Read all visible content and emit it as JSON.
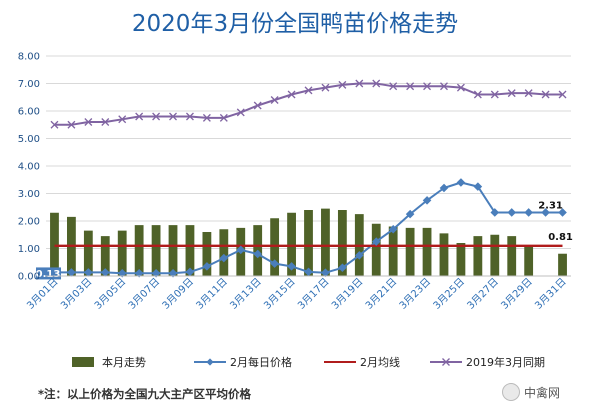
{
  "chart_data": {
    "type": "bar",
    "title": "2020年3月份全国鸭苗价格走势",
    "ylim": [
      0,
      8
    ],
    "yticks": [
      "0.00",
      "1.00",
      "2.00",
      "3.00",
      "4.00",
      "5.00",
      "6.00",
      "7.00",
      "8.00"
    ],
    "grid": true,
    "legend_position": "bottom",
    "categories": [
      "3月01日",
      "3月02日",
      "3月03日",
      "3月04日",
      "3月05日",
      "3月06日",
      "3月07日",
      "3月08日",
      "3月09日",
      "3月10日",
      "3月11日",
      "3月12日",
      "3月13日",
      "3月14日",
      "3月15日",
      "3月16日",
      "3月17日",
      "3月18日",
      "3月19日",
      "3月20日",
      "3月21日",
      "3月22日",
      "3月23日",
      "3月24日",
      "3月25日",
      "3月26日",
      "3月27日",
      "3月28日",
      "3月29日",
      "3月30日",
      "3月31日"
    ],
    "xtick_labels": [
      "3月01日",
      "3月03日",
      "3月05日",
      "3月07日",
      "3月09日",
      "3月11日",
      "3月13日",
      "3月15日",
      "3月17日",
      "3月19日",
      "3月21日",
      "3月23日",
      "3月25日",
      "3月27日",
      "3月29日",
      "3月31日"
    ],
    "series": [
      {
        "name": "本月走势",
        "type": "bar",
        "color": "#4f6228",
        "values": [
          2.3,
          2.15,
          1.65,
          1.45,
          1.65,
          1.85,
          1.85,
          1.85,
          1.85,
          1.6,
          1.7,
          1.75,
          1.85,
          2.1,
          2.3,
          2.4,
          2.45,
          2.4,
          2.25,
          1.9,
          1.8,
          1.75,
          1.75,
          1.55,
          1.2,
          1.45,
          1.5,
          1.45,
          1.1,
          null,
          0.81
        ]
      },
      {
        "name": "2月每日价格",
        "type": "line",
        "color": "#4a7ebb",
        "marker": "diamond",
        "values": [
          0.13,
          0.13,
          0.13,
          0.13,
          0.1,
          0.1,
          0.1,
          0.1,
          0.15,
          0.35,
          0.65,
          0.95,
          0.8,
          0.45,
          0.35,
          0.15,
          0.12,
          0.3,
          0.75,
          1.25,
          1.7,
          2.25,
          2.75,
          3.2,
          3.4,
          3.25,
          2.31,
          2.31,
          2.31,
          2.31,
          2.31
        ]
      },
      {
        "name": "2月均线",
        "type": "line",
        "color": "#b01c1c",
        "values": [
          1.1,
          1.1,
          1.1,
          1.1,
          1.1,
          1.1,
          1.1,
          1.1,
          1.1,
          1.1,
          1.1,
          1.1,
          1.1,
          1.1,
          1.1,
          1.1,
          1.1,
          1.1,
          1.1,
          1.1,
          1.1,
          1.1,
          1.1,
          1.1,
          1.1,
          1.1,
          1.1,
          1.1,
          1.1,
          1.1,
          1.1
        ]
      },
      {
        "name": "2019年3月同期",
        "type": "line",
        "color": "#8064a2",
        "marker": "x",
        "values": [
          5.5,
          5.5,
          5.6,
          5.6,
          5.7,
          5.8,
          5.8,
          5.8,
          5.8,
          5.75,
          5.75,
          5.95,
          6.2,
          6.4,
          6.6,
          6.75,
          6.85,
          6.95,
          7.0,
          7.0,
          6.9,
          6.9,
          6.9,
          6.9,
          6.85,
          6.6,
          6.6,
          6.65,
          6.65,
          6.6,
          6.6
        ]
      }
    ],
    "annotations": [
      {
        "text": "2.31",
        "series": "2月每日价格",
        "index": 30
      },
      {
        "text": "0.81",
        "series": "本月走势",
        "index": 30
      },
      {
        "text": "0.13",
        "series": "2月每日价格",
        "index": 0
      }
    ]
  },
  "footnote": "*注：以上价格为全国九大主产区平均价格",
  "brand": "中禽网"
}
